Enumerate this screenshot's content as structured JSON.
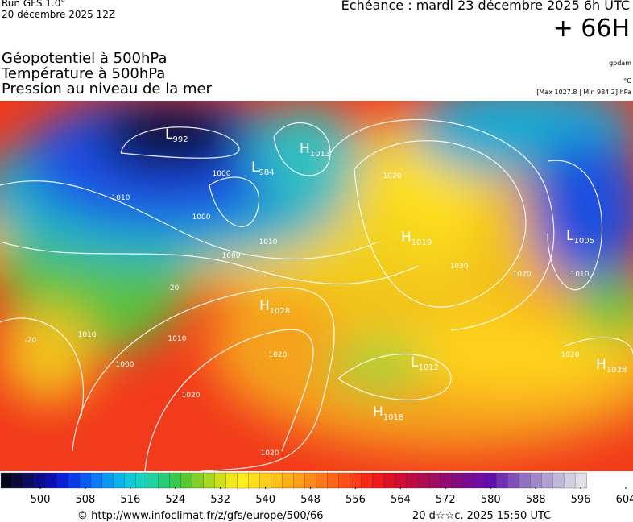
{
  "header": {
    "run": "Run GFS 1.0°",
    "run_date": "20 décembre 2025 12Z",
    "echeance": "Echéance : mardi 23 décembre 2025 6h UTC",
    "lead": "+ 66H"
  },
  "legend": {
    "lines": [
      "Géopotentiel à 500hPa",
      "Température à 500hPa",
      "Pression au niveau de la mer"
    ],
    "units": [
      "gpdam",
      "°C",
      "[Max 1027.8 | Min 984.2] hPa"
    ]
  },
  "centers": [
    {
      "letter": "L",
      "value": "992"
    },
    {
      "letter": "L",
      "value": "984"
    },
    {
      "letter": "H",
      "value": "1013"
    },
    {
      "letter": "H",
      "value": "1019"
    },
    {
      "letter": "L",
      "value": "1005"
    },
    {
      "letter": "H",
      "value": "1028"
    },
    {
      "letter": "L",
      "value": "1012"
    },
    {
      "letter": "H",
      "value": "1018"
    },
    {
      "letter": "H",
      "value": "1028"
    }
  ],
  "isobar_labels": [
    "1000",
    "1010",
    "1000",
    "1010",
    "1000",
    "1020",
    "1030",
    "1020",
    "1010",
    "1010",
    "1010",
    "1000",
    "1020",
    "1020",
    "1020",
    "1020",
    "-20",
    "-20"
  ],
  "colorbar": {
    "ticks": [
      500,
      508,
      516,
      524,
      532,
      540,
      548,
      556,
      564,
      572,
      580,
      588,
      596,
      604
    ]
  },
  "footer": {
    "url": "© http://www.infoclimat.fr/z/gfs/europe/500/66",
    "timestamp": "20 d☆☆c. 2025 15:50 UTC"
  }
}
